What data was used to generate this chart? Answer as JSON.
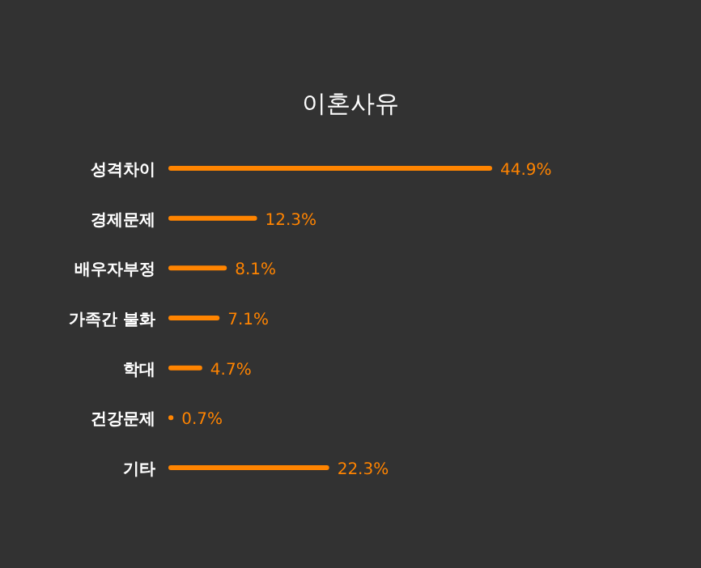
{
  "chart_data": {
    "type": "bar",
    "orientation": "horizontal",
    "title": "이혼사유",
    "categories": [
      "성격차이",
      "경제문제",
      "배우자부정",
      "가족간 불화",
      "학대",
      "건강문제",
      "기타"
    ],
    "values": [
      44.9,
      12.3,
      8.1,
      7.1,
      4.7,
      0.7,
      22.3
    ],
    "value_labels": [
      "44.9%",
      "12.3%",
      "8.1%",
      "7.1%",
      "4.7%",
      "0.7%",
      "22.3%"
    ],
    "color": "#ff8400",
    "xlim": [
      0,
      44.9
    ]
  }
}
